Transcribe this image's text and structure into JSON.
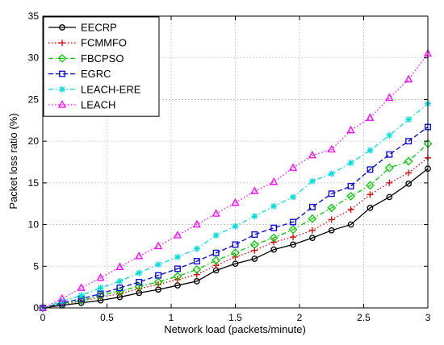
{
  "chart_data": {
    "type": "line",
    "xlabel": "Network load (packets/minute)",
    "ylabel": "Packet loss ratio (%)",
    "xlim": [
      0,
      3
    ],
    "ylim": [
      0,
      35
    ],
    "xticks": [
      "0",
      "0.5",
      "1",
      "1.5",
      "2",
      "2.5",
      "3"
    ],
    "yticks": [
      "0",
      "5",
      "10",
      "15",
      "20",
      "25",
      "30",
      "35"
    ],
    "grid": true,
    "legend_position": "top-left",
    "x": [
      0,
      0.15,
      0.3,
      0.45,
      0.6,
      0.75,
      0.9,
      1.05,
      1.2,
      1.35,
      1.5,
      1.65,
      1.8,
      1.95,
      2.1,
      2.25,
      2.4,
      2.55,
      2.7,
      2.85,
      3.0
    ],
    "series": [
      {
        "name": "EECRP",
        "color": "#000000",
        "marker": "circle",
        "dash": "solid",
        "values": [
          0,
          0.3,
          0.6,
          0.9,
          1.3,
          1.8,
          2.2,
          2.7,
          3.2,
          4.5,
          5.3,
          5.9,
          7.0,
          7.6,
          8.4,
          9.3,
          10.0,
          12.0,
          13.3,
          14.9,
          16.7
        ]
      },
      {
        "name": "FCMMFO",
        "color": "#e00000",
        "marker": "plus",
        "dash": "dotted",
        "values": [
          0,
          0.4,
          0.8,
          1.3,
          1.7,
          2.3,
          2.8,
          3.4,
          4.0,
          5.1,
          6.1,
          6.9,
          7.9,
          8.5,
          9.3,
          10.6,
          11.8,
          13.6,
          15.0,
          16.2,
          18.0
        ]
      },
      {
        "name": "FBCPSO",
        "color": "#00cc00",
        "marker": "diamond",
        "dash": "dashdot",
        "values": [
          0,
          0.5,
          0.9,
          1.5,
          2.0,
          2.6,
          3.1,
          3.8,
          4.6,
          5.7,
          6.6,
          7.6,
          8.4,
          9.4,
          10.7,
          12.0,
          13.4,
          14.7,
          16.8,
          17.6,
          19.7
        ]
      },
      {
        "name": "EGRC",
        "color": "#0000dd",
        "marker": "square",
        "dash": "dashed",
        "values": [
          0,
          0.6,
          1.1,
          1.7,
          2.4,
          3.1,
          3.9,
          4.7,
          5.6,
          6.6,
          7.6,
          8.8,
          9.6,
          10.3,
          12.1,
          13.7,
          14.6,
          16.6,
          18.4,
          20.0,
          21.7
        ]
      },
      {
        "name": "LEACH-ERE",
        "color": "#00dddd",
        "marker": "star",
        "dash": "dashdot",
        "values": [
          0,
          0.8,
          1.5,
          2.4,
          3.2,
          4.2,
          5.2,
          6.1,
          7.1,
          8.7,
          9.8,
          11.0,
          12.2,
          13.3,
          15.2,
          16.1,
          17.4,
          18.9,
          20.7,
          22.6,
          24.5
        ]
      },
      {
        "name": "LEACH",
        "color": "#ff00ff",
        "marker": "triangle",
        "dash": "dotted",
        "values": [
          0,
          1.1,
          2.4,
          3.6,
          4.9,
          6.2,
          7.4,
          8.7,
          10.0,
          11.3,
          12.6,
          14.0,
          15.1,
          16.8,
          18.3,
          19.0,
          21.3,
          22.8,
          25.2,
          27.4,
          30.5
        ]
      }
    ]
  }
}
